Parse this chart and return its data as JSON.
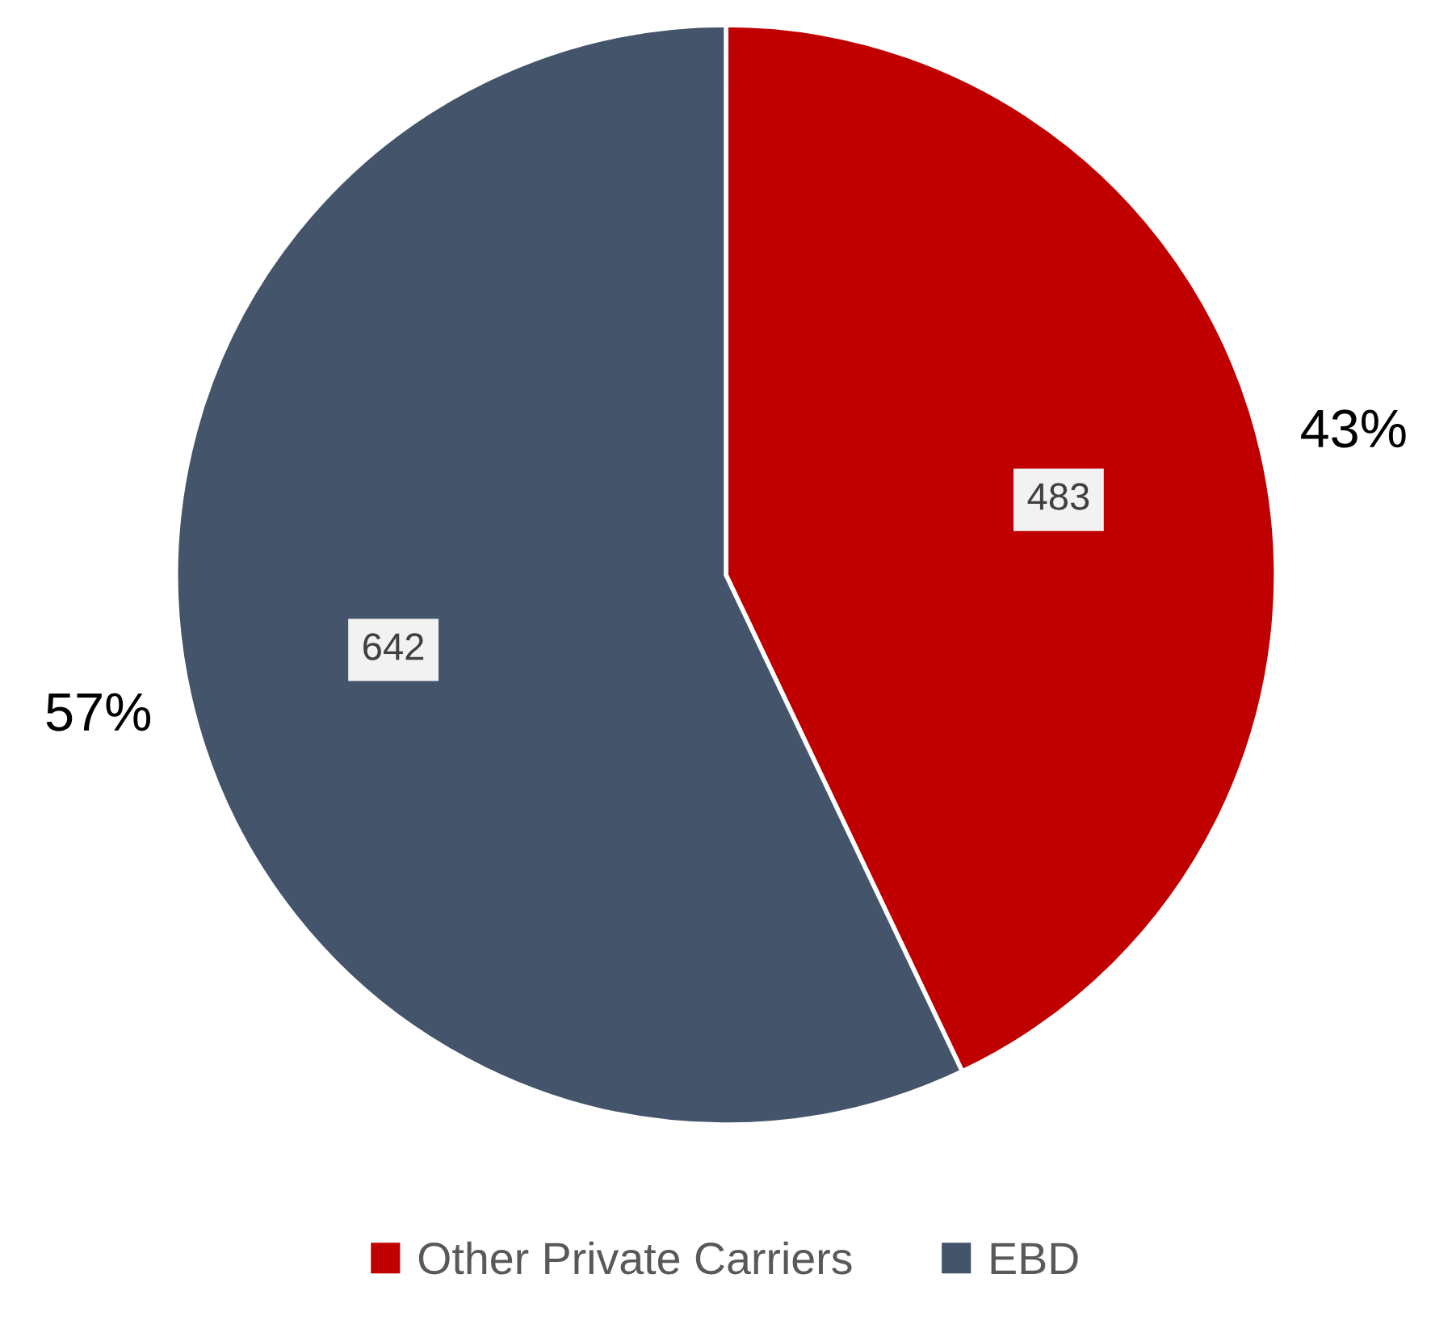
{
  "chart_data": {
    "type": "pie",
    "categories": [
      "Other Private Carriers",
      "EBD"
    ],
    "values": [
      483,
      642
    ],
    "colors": [
      "#c00000",
      "#44546a"
    ],
    "value_labels": [
      "483",
      "642"
    ],
    "annotations": [
      "43%",
      "57%"
    ],
    "legend": "bottom"
  }
}
